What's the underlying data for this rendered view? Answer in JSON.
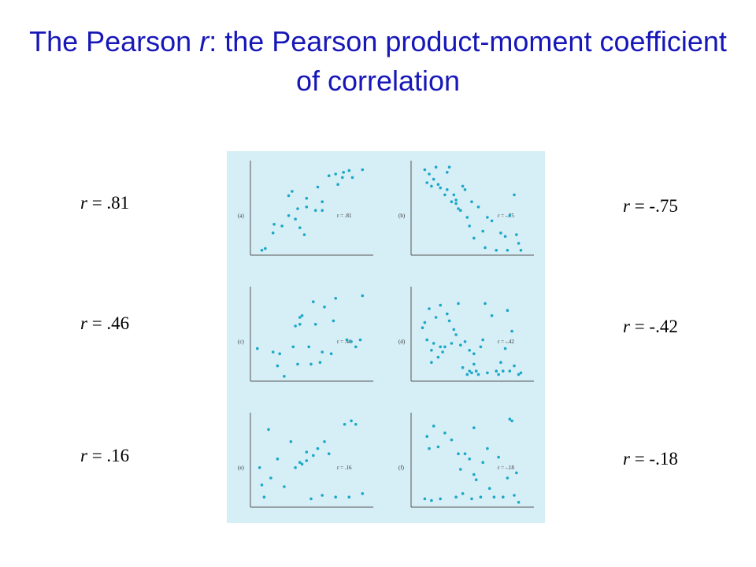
{
  "title": {
    "part1": "The Pearson ",
    "r": "r",
    "part2": ": the Pearson product-moment",
    "line2": "coefficient of correlation"
  },
  "labels": [
    {
      "sym": "r",
      "text": " = .81",
      "side": "left",
      "row": 0
    },
    {
      "sym": "r",
      "text": " = .46",
      "side": "left",
      "row": 1
    },
    {
      "sym": "r",
      "text": " = .16",
      "side": "left",
      "row": 2
    },
    {
      "sym": "r",
      "text": " = -.75",
      "side": "right",
      "row": 0
    },
    {
      "sym": "r",
      "text": " = -.42",
      "side": "right",
      "row": 1
    },
    {
      "sym": "r",
      "text": " = -.18",
      "side": "right",
      "row": 2
    }
  ],
  "colors": {
    "title": "#1717b8",
    "points": "#1aa8c8",
    "panel_bg": "#d6eef5",
    "axis": "#555555"
  },
  "chart_data": [
    {
      "type": "scatter",
      "panel_label": "(a)",
      "r_label": "r = .81",
      "ylim": [
        0,
        100
      ],
      "xlim": [
        0,
        100
      ],
      "points": [
        [
          6,
          2
        ],
        [
          9,
          4
        ],
        [
          16,
          22
        ],
        [
          17,
          32
        ],
        [
          24,
          30
        ],
        [
          30,
          65
        ],
        [
          33,
          70
        ],
        [
          30,
          42
        ],
        [
          36,
          38
        ],
        [
          40,
          28
        ],
        [
          38,
          50
        ],
        [
          44,
          20
        ],
        [
          46,
          52
        ],
        [
          46,
          62
        ],
        [
          54,
          48
        ],
        [
          56,
          75
        ],
        [
          60,
          48
        ],
        [
          60,
          58
        ],
        [
          66,
          88
        ],
        [
          72,
          90
        ],
        [
          74,
          78
        ],
        [
          78,
          86
        ],
        [
          79,
          92
        ],
        [
          84,
          94
        ],
        [
          87,
          86
        ],
        [
          96,
          95
        ]
      ]
    },
    {
      "type": "scatter",
      "panel_label": "(b)",
      "r_label": "r = -.75",
      "ylim": [
        0,
        100
      ],
      "xlim": [
        0,
        100
      ],
      "points": [
        [
          8,
          95
        ],
        [
          10,
          80
        ],
        [
          12,
          90
        ],
        [
          14,
          76
        ],
        [
          16,
          84
        ],
        [
          18,
          98
        ],
        [
          20,
          78
        ],
        [
          22,
          74
        ],
        [
          26,
          66
        ],
        [
          28,
          92
        ],
        [
          28,
          72
        ],
        [
          30,
          98
        ],
        [
          32,
          58
        ],
        [
          34,
          66
        ],
        [
          36,
          60
        ],
        [
          36,
          56
        ],
        [
          38,
          50
        ],
        [
          40,
          48
        ],
        [
          42,
          76
        ],
        [
          44,
          72
        ],
        [
          46,
          40
        ],
        [
          48,
          30
        ],
        [
          50,
          58
        ],
        [
          52,
          16
        ],
        [
          56,
          52
        ],
        [
          60,
          24
        ],
        [
          62,
          5
        ],
        [
          64,
          40
        ],
        [
          68,
          36
        ],
        [
          72,
          2
        ],
        [
          76,
          22
        ],
        [
          80,
          18
        ],
        [
          82,
          2
        ],
        [
          84,
          42
        ],
        [
          88,
          66
        ],
        [
          90,
          20
        ],
        [
          92,
          10
        ],
        [
          94,
          2
        ]
      ]
    },
    {
      "type": "scatter",
      "panel_label": "(c)",
      "r_label": "r = .46",
      "ylim": [
        0,
        100
      ],
      "xlim": [
        0,
        100
      ],
      "points": [
        [
          2,
          34
        ],
        [
          16,
          30
        ],
        [
          20,
          14
        ],
        [
          22,
          28
        ],
        [
          26,
          2
        ],
        [
          34,
          36
        ],
        [
          36,
          60
        ],
        [
          38,
          16
        ],
        [
          40,
          62
        ],
        [
          40,
          70
        ],
        [
          42,
          72
        ],
        [
          48,
          36
        ],
        [
          50,
          16
        ],
        [
          52,
          88
        ],
        [
          54,
          62
        ],
        [
          58,
          18
        ],
        [
          60,
          30
        ],
        [
          62,
          82
        ],
        [
          68,
          28
        ],
        [
          70,
          66
        ],
        [
          72,
          92
        ],
        [
          82,
          44
        ],
        [
          86,
          42
        ],
        [
          90,
          36
        ],
        [
          94,
          44
        ],
        [
          96,
          95
        ]
      ]
    },
    {
      "type": "scatter",
      "panel_label": "(d)",
      "r_label": "r = -.42",
      "ylim": [
        0,
        100
      ],
      "xlim": [
        0,
        100
      ],
      "points": [
        [
          6,
          58
        ],
        [
          8,
          64
        ],
        [
          10,
          44
        ],
        [
          12,
          80
        ],
        [
          14,
          18
        ],
        [
          14,
          32
        ],
        [
          16,
          40
        ],
        [
          18,
          70
        ],
        [
          20,
          24
        ],
        [
          22,
          36
        ],
        [
          22,
          84
        ],
        [
          24,
          30
        ],
        [
          26,
          36
        ],
        [
          28,
          74
        ],
        [
          30,
          66
        ],
        [
          32,
          40
        ],
        [
          34,
          56
        ],
        [
          36,
          50
        ],
        [
          38,
          86
        ],
        [
          40,
          38
        ],
        [
          42,
          12
        ],
        [
          44,
          42
        ],
        [
          46,
          4
        ],
        [
          48,
          8
        ],
        [
          48,
          32
        ],
        [
          50,
          6
        ],
        [
          52,
          16
        ],
        [
          52,
          28
        ],
        [
          54,
          8
        ],
        [
          56,
          4
        ],
        [
          58,
          36
        ],
        [
          60,
          44
        ],
        [
          62,
          86
        ],
        [
          64,
          6
        ],
        [
          68,
          72
        ],
        [
          72,
          8
        ],
        [
          74,
          4
        ],
        [
          76,
          18
        ],
        [
          78,
          8
        ],
        [
          80,
          34
        ],
        [
          82,
          78
        ],
        [
          84,
          8
        ],
        [
          86,
          54
        ],
        [
          88,
          14
        ],
        [
          92,
          4
        ],
        [
          94,
          6
        ]
      ]
    },
    {
      "type": "scatter",
      "panel_label": "(e)",
      "r_label": "r = .16",
      "ylim": [
        0,
        100
      ],
      "xlim": [
        0,
        100
      ],
      "points": [
        [
          4,
          42
        ],
        [
          6,
          22
        ],
        [
          8,
          8
        ],
        [
          12,
          86
        ],
        [
          14,
          30
        ],
        [
          20,
          52
        ],
        [
          26,
          20
        ],
        [
          32,
          72
        ],
        [
          36,
          42
        ],
        [
          40,
          48
        ],
        [
          42,
          46
        ],
        [
          46,
          50
        ],
        [
          46,
          60
        ],
        [
          50,
          6
        ],
        [
          52,
          56
        ],
        [
          56,
          64
        ],
        [
          60,
          10
        ],
        [
          62,
          72
        ],
        [
          66,
          58
        ],
        [
          72,
          8
        ],
        [
          80,
          92
        ],
        [
          84,
          8
        ],
        [
          86,
          96
        ],
        [
          90,
          92
        ],
        [
          96,
          12
        ]
      ]
    },
    {
      "type": "scatter",
      "panel_label": "(f)",
      "r_label": "r = -.18",
      "ylim": [
        0,
        100
      ],
      "xlim": [
        0,
        100
      ],
      "points": [
        [
          8,
          6
        ],
        [
          10,
          78
        ],
        [
          12,
          64
        ],
        [
          14,
          4
        ],
        [
          16,
          90
        ],
        [
          20,
          66
        ],
        [
          22,
          6
        ],
        [
          26,
          82
        ],
        [
          32,
          74
        ],
        [
          36,
          8
        ],
        [
          38,
          58
        ],
        [
          40,
          40
        ],
        [
          42,
          12
        ],
        [
          44,
          58
        ],
        [
          48,
          52
        ],
        [
          50,
          6
        ],
        [
          52,
          34
        ],
        [
          52,
          88
        ],
        [
          54,
          28
        ],
        [
          58,
          8
        ],
        [
          60,
          48
        ],
        [
          64,
          64
        ],
        [
          66,
          18
        ],
        [
          70,
          8
        ],
        [
          74,
          54
        ],
        [
          78,
          8
        ],
        [
          82,
          30
        ],
        [
          84,
          98
        ],
        [
          86,
          96
        ],
        [
          88,
          10
        ],
        [
          90,
          36
        ],
        [
          92,
          2
        ]
      ]
    }
  ]
}
